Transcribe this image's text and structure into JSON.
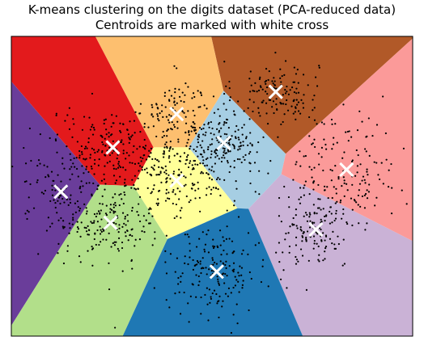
{
  "chart_data": {
    "type": "scatter",
    "title": "K-means clustering on the digits dataset (PCA-reduced data)",
    "subtitle": "Centroids are marked with white cross",
    "xlabel": "",
    "ylabel": "",
    "axis_ticks": "none",
    "grid": false,
    "legend": "none",
    "background": "decision regions (Voronoi cells of the centroids)",
    "centroid_marker": {
      "shape": "x",
      "color": "#ffffff"
    },
    "point_color": "#000000",
    "xlim": [
      -8.0,
      9.0
    ],
    "ylim": [
      -6.0,
      7.5
    ],
    "clusters": [
      {
        "color": "#b15928",
        "centroid": [
          3.2,
          5.0
        ],
        "spread": [
          0.9,
          0.7
        ],
        "n": 130
      },
      {
        "color": "#fdbf6f",
        "centroid": [
          -1.0,
          4.0
        ],
        "spread": [
          0.7,
          0.8
        ],
        "n": 110
      },
      {
        "color": "#a6cee3",
        "centroid": [
          1.0,
          2.7
        ],
        "spread": [
          0.9,
          0.8
        ],
        "n": 190
      },
      {
        "color": "#e31a1c",
        "centroid": [
          -3.7,
          2.5
        ],
        "spread": [
          1.3,
          0.8
        ],
        "n": 190
      },
      {
        "color": "#fb9a99",
        "centroid": [
          6.2,
          1.5
        ],
        "spread": [
          1.1,
          1.3
        ],
        "n": 150
      },
      {
        "color": "#6a3d9a",
        "centroid": [
          -5.9,
          0.5
        ],
        "spread": [
          1.0,
          1.0
        ],
        "n": 110
      },
      {
        "color": "#ffff99",
        "centroid": [
          -1.0,
          1.0
        ],
        "spread": [
          1.2,
          0.9
        ],
        "n": 170
      },
      {
        "color": "#b2df8a",
        "centroid": [
          -3.8,
          -0.9
        ],
        "spread": [
          0.9,
          0.8
        ],
        "n": 160
      },
      {
        "color": "#cab2d6",
        "centroid": [
          4.9,
          -1.2
        ],
        "spread": [
          0.8,
          0.9
        ],
        "n": 140
      },
      {
        "color": "#1f78b4",
        "centroid": [
          0.7,
          -3.1
        ],
        "spread": [
          1.1,
          0.9
        ],
        "n": 180
      }
    ]
  }
}
